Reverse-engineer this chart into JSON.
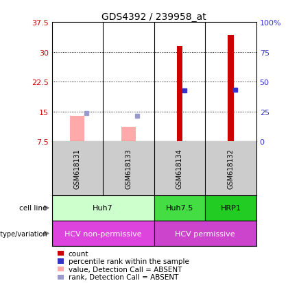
{
  "title": "GDS4392 / 239958_at",
  "samples": [
    "GSM618131",
    "GSM618133",
    "GSM618134",
    "GSM618132"
  ],
  "bar_values_red": [
    0,
    0,
    31.5,
    34.2
  ],
  "bar_values_pink": [
    13.8,
    11.2,
    0,
    0
  ],
  "dot_blue_solid": [
    null,
    null,
    20.2,
    20.4
  ],
  "dot_blue_light": [
    14.5,
    13.8,
    null,
    null
  ],
  "ylim": [
    7.5,
    37.5
  ],
  "yticks": [
    7.5,
    15.0,
    22.5,
    30.0,
    37.5
  ],
  "ytick_labels": [
    "7.5",
    "15",
    "22.5",
    "30",
    "37.5"
  ],
  "yright_ticks": [
    7.5,
    15.0,
    22.5,
    30.0,
    37.5
  ],
  "yright_labels": [
    "0",
    "25",
    "50",
    "75",
    "100%"
  ],
  "cell_lines": [
    {
      "label": "Huh7",
      "start": 0,
      "end": 2,
      "color": "#ccffcc"
    },
    {
      "label": "Huh7.5",
      "start": 2,
      "end": 3,
      "color": "#44dd44"
    },
    {
      "label": "HRP1",
      "start": 3,
      "end": 4,
      "color": "#22cc22"
    }
  ],
  "genotypes": [
    {
      "label": "HCV non-permissive",
      "start": 0,
      "end": 2,
      "color": "#dd44dd"
    },
    {
      "label": "HCV permissive",
      "start": 2,
      "end": 4,
      "color": "#cc44cc"
    }
  ],
  "red_bar_color": "#cc0000",
  "pink_bar_color": "#ffaaaa",
  "blue_dot_color": "#3333cc",
  "light_blue_dot_color": "#9999cc",
  "axis_left_color": "#cc0000",
  "axis_right_color": "#3333cc",
  "grid_color": "#000000",
  "sample_area_color": "#cccccc",
  "red_bar_width": 0.12,
  "pink_bar_width": 0.28,
  "legend_items": [
    {
      "color": "#cc0000",
      "label": "count",
      "shape": "square"
    },
    {
      "color": "#3333cc",
      "label": "percentile rank within the sample",
      "shape": "square"
    },
    {
      "color": "#ffaaaa",
      "label": "value, Detection Call = ABSENT",
      "shape": "square"
    },
    {
      "color": "#9999cc",
      "label": "rank, Detection Call = ABSENT",
      "shape": "square"
    }
  ]
}
